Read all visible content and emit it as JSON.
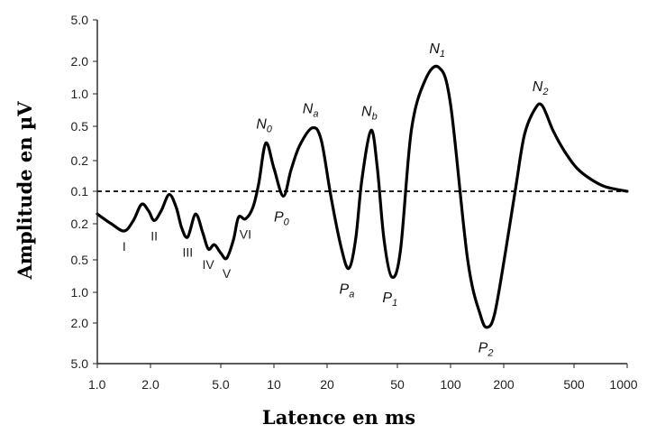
{
  "chart_data": {
    "type": "line",
    "xlabel": "Latence en ms",
    "ylabel": "Amplitude en µV",
    "x_scale": "log",
    "xlim": [
      1,
      1000
    ],
    "x_ticks": [
      "1.0",
      "2.0",
      "5.0",
      "10",
      "20",
      "50",
      "100",
      "200",
      "500",
      "1000"
    ],
    "y_ticks_top": [
      "5.0",
      "2.0",
      "1.0",
      "0.5",
      "0.2",
      "0.1"
    ],
    "y_ticks_bottom": [
      "0.2",
      "0.5",
      "1.0",
      "2.0",
      "5.0"
    ],
    "reference_line": {
      "value": 0.1,
      "style": "dashed"
    },
    "series": [
      {
        "line_color": "#000000",
        "points": [
          [
            1.0,
            -0.14
          ],
          [
            1.2,
            -0.2
          ],
          [
            1.42,
            -0.24
          ],
          [
            1.6,
            -0.18
          ],
          [
            1.78,
            -0.08
          ],
          [
            1.95,
            -0.12
          ],
          [
            2.1,
            -0.18
          ],
          [
            2.3,
            -0.12
          ],
          [
            2.55,
            -0.02
          ],
          [
            2.8,
            -0.1
          ],
          [
            3.0,
            -0.22
          ],
          [
            3.25,
            -0.28
          ],
          [
            3.6,
            -0.14
          ],
          [
            3.95,
            -0.25
          ],
          [
            4.25,
            -0.38
          ],
          [
            4.6,
            -0.34
          ],
          [
            5.0,
            -0.42
          ],
          [
            5.4,
            -0.48
          ],
          [
            5.9,
            -0.3
          ],
          [
            6.3,
            -0.16
          ],
          [
            6.9,
            -0.17
          ],
          [
            7.6,
            -0.1
          ],
          [
            8.2,
            0.05
          ],
          [
            9.0,
            0.32
          ],
          [
            10.0,
            0.15
          ],
          [
            11.3,
            -0.03
          ],
          [
            12.5,
            0.14
          ],
          [
            14.0,
            0.3
          ],
          [
            16.5,
            0.48
          ],
          [
            18.5,
            0.35
          ],
          [
            21.0,
            -0.03
          ],
          [
            24.0,
            -0.36
          ],
          [
            26.5,
            -0.6
          ],
          [
            29.0,
            -0.3
          ],
          [
            31.5,
            0.08
          ],
          [
            35.5,
            0.45
          ],
          [
            38.5,
            0.15
          ],
          [
            42.0,
            -0.3
          ],
          [
            46.5,
            -0.72
          ],
          [
            52.0,
            -0.4
          ],
          [
            60.0,
            0.45
          ],
          [
            72.0,
            1.35
          ],
          [
            86.0,
            1.75
          ],
          [
            100.0,
            0.8
          ],
          [
            125.0,
            -0.5
          ],
          [
            148.0,
            -1.7
          ],
          [
            162.0,
            -2.2
          ],
          [
            178.0,
            -1.6
          ],
          [
            205.0,
            -0.4
          ],
          [
            235.0,
            0.04
          ],
          [
            262.0,
            0.4
          ],
          [
            300.0,
            0.72
          ],
          [
            330.0,
            0.78
          ],
          [
            380.0,
            0.45
          ],
          [
            440.0,
            0.26
          ],
          [
            520.0,
            0.15
          ],
          [
            620.0,
            0.08
          ],
          [
            750.0,
            0.03
          ],
          [
            1000.0,
            0.0
          ]
        ]
      }
    ],
    "wave_labels": [
      {
        "text": "I",
        "x": 1.42,
        "y": -0.24
      },
      {
        "text": "II",
        "x": 2.1,
        "y": -0.18
      },
      {
        "text": "III",
        "x": 3.25,
        "y": -0.28
      },
      {
        "text": "IV",
        "x": 4.25,
        "y": -0.38
      },
      {
        "text": "V",
        "x": 5.4,
        "y": -0.48
      },
      {
        "text": "VI",
        "x": 6.9,
        "y": -0.17
      }
    ],
    "peak_labels": [
      {
        "letter": "N",
        "sub": "0",
        "x": 9.0,
        "y": 0.32,
        "position": "above"
      },
      {
        "letter": "P",
        "sub": "0",
        "x": 11.3,
        "y": -0.03,
        "position": "below"
      },
      {
        "letter": "N",
        "sub": "a",
        "x": 16.5,
        "y": 0.48,
        "position": "above"
      },
      {
        "letter": "P",
        "sub": "a",
        "x": 26.5,
        "y": -0.6,
        "position": "below"
      },
      {
        "letter": "N",
        "sub": "b",
        "x": 35.5,
        "y": 0.45,
        "position": "above"
      },
      {
        "letter": "P",
        "sub": "1",
        "x": 46.5,
        "y": -0.72,
        "position": "below"
      },
      {
        "letter": "N",
        "sub": "1",
        "x": 86.0,
        "y": 1.75,
        "position": "above"
      },
      {
        "letter": "P",
        "sub": "2",
        "x": 162.0,
        "y": -2.2,
        "position": "below"
      },
      {
        "letter": "N",
        "sub": "2",
        "x": 330.0,
        "y": 0.78,
        "position": "above"
      }
    ]
  }
}
